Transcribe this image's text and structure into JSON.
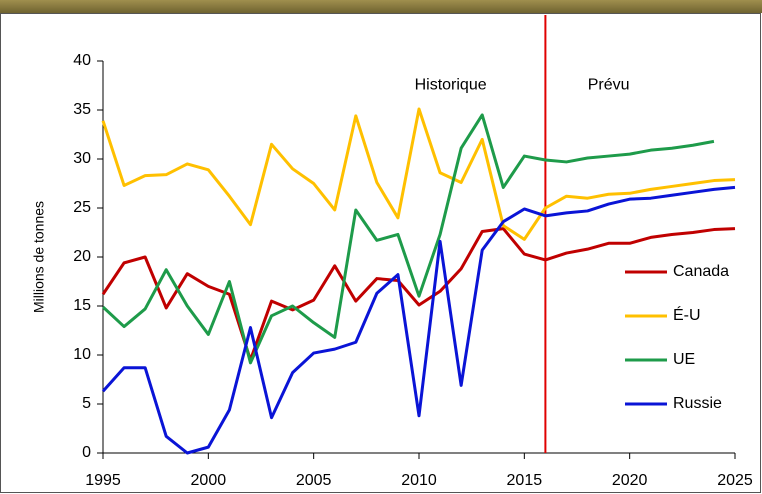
{
  "chart_data": {
    "type": "line",
    "ylabel": "Millions de tonnes",
    "x": [
      1995,
      1996,
      1997,
      1998,
      1999,
      2000,
      2001,
      2002,
      2003,
      2004,
      2005,
      2006,
      2007,
      2008,
      2009,
      2010,
      2011,
      2012,
      2013,
      2014,
      2015,
      2016,
      2017,
      2018,
      2019,
      2020,
      2021,
      2022,
      2023,
      2024,
      2025
    ],
    "series": [
      {
        "name": "Canada",
        "color": "#c00000",
        "values": [
          16.2,
          19.4,
          20.0,
          14.8,
          18.3,
          17.0,
          16.2,
          9.5,
          15.5,
          14.6,
          15.6,
          19.1,
          15.5,
          17.8,
          17.6,
          15.1,
          16.5,
          18.8,
          22.6,
          22.9,
          20.3,
          19.7,
          20.4,
          20.8,
          21.4,
          21.4,
          22.0,
          22.3,
          22.5,
          22.8,
          22.9
        ]
      },
      {
        "name": "É-U",
        "color": "#ffc000",
        "values": [
          33.9,
          27.3,
          28.3,
          28.4,
          29.5,
          28.9,
          26.2,
          23.3,
          31.5,
          29.0,
          27.5,
          24.8,
          34.4,
          27.6,
          24.0,
          35.1,
          28.6,
          27.6,
          32.0,
          23.2,
          21.8,
          25.0,
          26.2,
          26.0,
          26.4,
          26.5,
          26.9,
          27.2,
          27.5,
          27.8,
          27.9
        ]
      },
      {
        "name": "UE",
        "color": "#1e9b4a",
        "values": [
          14.9,
          12.9,
          14.7,
          18.7,
          15.0,
          12.1,
          17.5,
          9.2,
          14.0,
          15.0,
          13.3,
          11.8,
          24.8,
          21.7,
          22.3,
          16.0,
          22.3,
          31.1,
          34.5,
          27.1,
          30.3,
          29.9,
          29.7,
          30.1,
          30.3,
          30.5,
          30.9,
          31.1,
          31.4,
          31.8,
          null
        ]
      },
      {
        "name": "Russie",
        "color": "#0a14d6",
        "values": [
          6.3,
          8.7,
          8.7,
          1.7,
          0.0,
          0.6,
          4.4,
          12.8,
          3.6,
          8.2,
          10.2,
          10.6,
          11.3,
          16.3,
          18.2,
          3.8,
          21.6,
          6.9,
          20.7,
          23.6,
          24.9,
          24.2,
          24.5,
          24.7,
          25.4,
          25.9,
          26.0,
          26.3,
          26.6,
          26.9,
          27.1
        ]
      }
    ],
    "xlim": [
      1995,
      2025
    ],
    "xticks": [
      1995,
      2000,
      2005,
      2010,
      2015,
      2020,
      2025
    ],
    "ylim": [
      0,
      40
    ],
    "yticks": [
      0,
      5,
      10,
      15,
      20,
      25,
      30,
      35,
      40
    ],
    "vline": {
      "x": 2016,
      "color": "#e00000"
    },
    "annotations": [
      {
        "text": "Historique",
        "x": 2011.5,
        "y": 37.5
      },
      {
        "text": "Prévu",
        "x": 2019,
        "y": 37.5
      }
    ],
    "legend": "lower right",
    "grid": false
  }
}
